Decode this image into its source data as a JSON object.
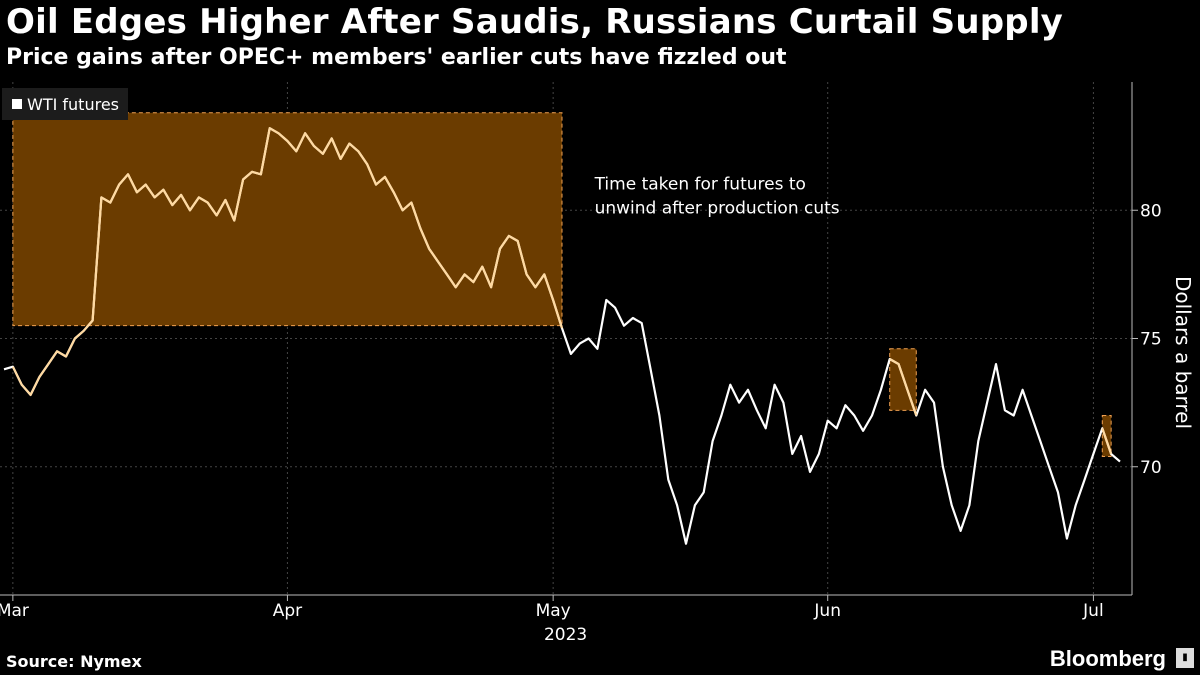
{
  "header": {
    "title": "Oil Edges Higher After Saudis, Russians Curtail Supply",
    "subtitle": "Price gains after OPEC+ members' earlier cuts have fizzled out"
  },
  "footer": {
    "source": "Source: Nymex",
    "brand": "Bloomberg"
  },
  "colors": {
    "background": "#000000",
    "line": "#ffffff",
    "highlight_line": "#ffd9a0",
    "highlight_box": "#6b3c00",
    "highlight_border": "#f0a050",
    "grid": "#444444"
  },
  "chart_data": {
    "type": "line",
    "title": "Oil Edges Higher After Saudis, Russians Curtail Supply",
    "subtitle": "Price gains after OPEC+ members' earlier cuts have fizzled out",
    "ylabel": "Dollars a barrel",
    "xlabel": "",
    "year_label": "2023",
    "ylim": [
      65,
      85
    ],
    "y_ticks": [
      70,
      75,
      80
    ],
    "x_ticks": [
      {
        "label": "Mar",
        "date": "2023-03-01"
      },
      {
        "label": "Apr",
        "date": "2023-04-01"
      },
      {
        "label": "May",
        "date": "2023-05-01"
      },
      {
        "label": "Jun",
        "date": "2023-06-01"
      },
      {
        "label": "Jul",
        "date": "2023-07-01"
      }
    ],
    "x_range": [
      "2023-02-28",
      "2023-07-04"
    ],
    "grid": true,
    "legend": {
      "position": "top-left",
      "entries": [
        "WTI futures"
      ]
    },
    "series": [
      {
        "name": "WTI futures",
        "points": [
          [
            "2023-02-28",
            73.8
          ],
          [
            "2023-03-01",
            73.9
          ],
          [
            "2023-03-02",
            73.2
          ],
          [
            "2023-03-03",
            72.8
          ],
          [
            "2023-03-04",
            73.5
          ],
          [
            "2023-03-05",
            74.0
          ],
          [
            "2023-03-06",
            74.5
          ],
          [
            "2023-03-07",
            74.3
          ],
          [
            "2023-03-08",
            75.0
          ],
          [
            "2023-03-09",
            75.3
          ],
          [
            "2023-03-10",
            75.7
          ],
          [
            "2023-03-11",
            80.5
          ],
          [
            "2023-03-12",
            80.3
          ],
          [
            "2023-03-13",
            81.0
          ],
          [
            "2023-03-14",
            81.4
          ],
          [
            "2023-03-15",
            80.7
          ],
          [
            "2023-03-16",
            81.0
          ],
          [
            "2023-03-17",
            80.5
          ],
          [
            "2023-03-18",
            80.8
          ],
          [
            "2023-03-19",
            80.2
          ],
          [
            "2023-03-20",
            80.6
          ],
          [
            "2023-03-21",
            80.0
          ],
          [
            "2023-03-22",
            80.5
          ],
          [
            "2023-03-23",
            80.3
          ],
          [
            "2023-03-24",
            79.8
          ],
          [
            "2023-03-25",
            80.4
          ],
          [
            "2023-03-26",
            79.6
          ],
          [
            "2023-03-27",
            81.2
          ],
          [
            "2023-03-28",
            81.5
          ],
          [
            "2023-03-29",
            81.4
          ],
          [
            "2023-03-30",
            83.2
          ],
          [
            "2023-03-31",
            83.0
          ],
          [
            "2023-04-01",
            82.7
          ],
          [
            "2023-04-02",
            82.3
          ],
          [
            "2023-04-03",
            83.0
          ],
          [
            "2023-04-04",
            82.5
          ],
          [
            "2023-04-05",
            82.2
          ],
          [
            "2023-04-06",
            82.8
          ],
          [
            "2023-04-07",
            82.0
          ],
          [
            "2023-04-08",
            82.6
          ],
          [
            "2023-04-09",
            82.3
          ],
          [
            "2023-04-10",
            81.8
          ],
          [
            "2023-04-11",
            81.0
          ],
          [
            "2023-04-12",
            81.3
          ],
          [
            "2023-04-13",
            80.7
          ],
          [
            "2023-04-14",
            80.0
          ],
          [
            "2023-04-15",
            80.3
          ],
          [
            "2023-04-16",
            79.3
          ],
          [
            "2023-04-17",
            78.5
          ],
          [
            "2023-04-18",
            78.0
          ],
          [
            "2023-04-19",
            77.5
          ],
          [
            "2023-04-20",
            77.0
          ],
          [
            "2023-04-21",
            77.5
          ],
          [
            "2023-04-22",
            77.2
          ],
          [
            "2023-04-23",
            77.8
          ],
          [
            "2023-04-24",
            77.0
          ],
          [
            "2023-04-25",
            78.5
          ],
          [
            "2023-04-26",
            79.0
          ],
          [
            "2023-04-27",
            78.8
          ],
          [
            "2023-04-28",
            77.5
          ],
          [
            "2023-04-29",
            77.0
          ],
          [
            "2023-04-30",
            77.5
          ],
          [
            "2023-05-01",
            76.5
          ],
          [
            "2023-05-02",
            75.4
          ],
          [
            "2023-05-03",
            74.4
          ],
          [
            "2023-05-04",
            74.8
          ],
          [
            "2023-05-05",
            75.0
          ],
          [
            "2023-05-06",
            74.6
          ],
          [
            "2023-05-07",
            76.5
          ],
          [
            "2023-05-08",
            76.2
          ],
          [
            "2023-05-09",
            75.5
          ],
          [
            "2023-05-10",
            75.8
          ],
          [
            "2023-05-11",
            75.6
          ],
          [
            "2023-05-12",
            73.8
          ],
          [
            "2023-05-13",
            72.0
          ],
          [
            "2023-05-14",
            69.5
          ],
          [
            "2023-05-15",
            68.5
          ],
          [
            "2023-05-16",
            67.0
          ],
          [
            "2023-05-17",
            68.5
          ],
          [
            "2023-05-18",
            69.0
          ],
          [
            "2023-05-19",
            71.0
          ],
          [
            "2023-05-20",
            72.0
          ],
          [
            "2023-05-21",
            73.2
          ],
          [
            "2023-05-22",
            72.5
          ],
          [
            "2023-05-23",
            73.0
          ],
          [
            "2023-05-24",
            72.2
          ],
          [
            "2023-05-25",
            71.5
          ],
          [
            "2023-05-26",
            73.2
          ],
          [
            "2023-05-27",
            72.5
          ],
          [
            "2023-05-28",
            70.5
          ],
          [
            "2023-05-29",
            71.2
          ],
          [
            "2023-05-30",
            69.8
          ],
          [
            "2023-05-31",
            70.5
          ],
          [
            "2023-06-01",
            71.8
          ],
          [
            "2023-06-02",
            71.5
          ],
          [
            "2023-06-03",
            72.4
          ],
          [
            "2023-06-04",
            72.0
          ],
          [
            "2023-06-05",
            71.4
          ],
          [
            "2023-06-06",
            72.0
          ],
          [
            "2023-06-07",
            73.0
          ],
          [
            "2023-06-08",
            74.2
          ],
          [
            "2023-06-09",
            74.0
          ],
          [
            "2023-06-10",
            73.0
          ],
          [
            "2023-06-11",
            72.0
          ],
          [
            "2023-06-12",
            73.0
          ],
          [
            "2023-06-13",
            72.5
          ],
          [
            "2023-06-14",
            70.0
          ],
          [
            "2023-06-15",
            68.5
          ],
          [
            "2023-06-16",
            67.5
          ],
          [
            "2023-06-17",
            68.5
          ],
          [
            "2023-06-18",
            71.0
          ],
          [
            "2023-06-19",
            72.5
          ],
          [
            "2023-06-20",
            74.0
          ],
          [
            "2023-06-21",
            72.2
          ],
          [
            "2023-06-22",
            72.0
          ],
          [
            "2023-06-23",
            73.0
          ],
          [
            "2023-06-24",
            72.0
          ],
          [
            "2023-06-25",
            71.0
          ],
          [
            "2023-06-26",
            70.0
          ],
          [
            "2023-06-27",
            69.0
          ],
          [
            "2023-06-28",
            67.2
          ],
          [
            "2023-06-29",
            68.5
          ],
          [
            "2023-06-30",
            69.5
          ],
          [
            "2023-07-01",
            70.5
          ],
          [
            "2023-07-02",
            71.5
          ],
          [
            "2023-07-03",
            70.5
          ],
          [
            "2023-07-04",
            70.2
          ]
        ]
      }
    ],
    "highlight_boxes": [
      {
        "x0": "2023-03-01",
        "x1": "2023-05-02",
        "y0": 75.5,
        "y1": 83.8
      },
      {
        "x0": "2023-06-08",
        "x1": "2023-06-11",
        "y0": 72.2,
        "y1": 74.6
      },
      {
        "x0": "2023-07-02",
        "x1": "2023-07-03",
        "y0": 70.4,
        "y1": 72.0
      }
    ],
    "annotations": [
      {
        "lines": [
          "Time taken for futures to",
          "unwind after production cuts"
        ],
        "x": "2023-05-05",
        "y": 80.8
      }
    ]
  }
}
